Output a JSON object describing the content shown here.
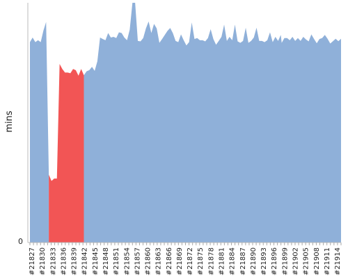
{
  "chart_data": {
    "type": "area",
    "title": "",
    "xlabel": "",
    "ylabel": "mins",
    "y_tick_labels": [
      "0"
    ],
    "ylim": [
      0,
      100
    ],
    "grid": false,
    "legend": "none",
    "categories": [
      "#21827",
      "#21830",
      "#21833",
      "#21836",
      "#21839",
      "#21842",
      "#21845",
      "#21848",
      "#21851",
      "#21854",
      "#21857",
      "#21860",
      "#21863",
      "#21866",
      "#21869",
      "#21872",
      "#21875",
      "#21878",
      "#21881",
      "#21884",
      "#21887",
      "#21890",
      "#21893",
      "#21896",
      "#21899",
      "#21902",
      "#21905",
      "#21908",
      "#21911",
      "#21914"
    ],
    "colors": {
      "normal": "#8fb0d9",
      "highlight": "#f25555"
    },
    "x": [
      0,
      0.75,
      1.5,
      2.25,
      3,
      3.75,
      4.5,
      5.25,
      6,
      6.75,
      7.5,
      8.25,
      9,
      9.75,
      10.5,
      11.25,
      12,
      12.75,
      13.5,
      14.25,
      15,
      15.75,
      16.5,
      17.25,
      18,
      18.75,
      19.5,
      20.25,
      21,
      21.75,
      22.5,
      23.25,
      24,
      24.75,
      25.5,
      26.25,
      27,
      27.75,
      28.5,
      29.25,
      30,
      30.75,
      31.5,
      32.25,
      33,
      33.75,
      34.5,
      35.25,
      36,
      36.75,
      37.5,
      38.25,
      39,
      39.75,
      40.5,
      41.25,
      42,
      42.75,
      43.5,
      44.25,
      45,
      45.75,
      46.5,
      47.25,
      48,
      48.75,
      49.5,
      50.25,
      51,
      51.75,
      52.5,
      53.25,
      54,
      54.75,
      55.5,
      56.25,
      57,
      57.75,
      58.5,
      59.25,
      60,
      60.75,
      61.5,
      62.25,
      63,
      63.75,
      64.5,
      65.25,
      66,
      66.75,
      67.5,
      68.25,
      69,
      69.75,
      70,
      70.75,
      71.5,
      72.25,
      73,
      73.75,
      74.5,
      75.25,
      76,
      76.75,
      77.5,
      78.25,
      79,
      79.75,
      80.5,
      81.25,
      82,
      82.75,
      83.5,
      84.25,
      85,
      85.75,
      86.5
    ],
    "values": [
      83.6,
      85.5,
      83.6,
      84.4,
      83.6,
      88.4,
      92,
      28.3,
      25.7,
      26.7,
      26.7,
      74.5,
      72.4,
      70.9,
      70.9,
      70.6,
      72.4,
      71.9,
      69.6,
      72.4,
      69.8,
      71.4,
      71.9,
      73.3,
      71.6,
      75.6,
      85.5,
      84.9,
      84.4,
      87.4,
      85.5,
      85.8,
      85.3,
      87.7,
      87.4,
      85.5,
      84.4,
      88.8,
      100,
      100,
      84.1,
      83.9,
      85.3,
      89.3,
      92.2,
      87.4,
      91.2,
      89.3,
      83.3,
      84.9,
      86.6,
      88.3,
      89.5,
      87.3,
      84.1,
      83.6,
      86.8,
      84.4,
      82.2,
      83.6,
      91.8,
      84.9,
      85.3,
      84.4,
      84.4,
      83.9,
      85.3,
      89,
      84.9,
      82.5,
      84.1,
      85.8,
      90.9,
      84.1,
      85.8,
      84.4,
      90.9,
      83.9,
      83.3,
      84.1,
      89.6,
      83.3,
      84.1,
      85.5,
      89.6,
      84.1,
      84.1,
      83.6,
      84.4,
      87.7,
      83.6,
      85.8,
      84.1,
      86.6,
      83.3,
      85.3,
      85.3,
      84.4,
      85.8,
      84.1,
      85.3,
      84.1,
      85.8,
      84.7,
      83.9,
      86.8,
      84.9,
      83.1,
      84.9,
      85.3,
      86.6,
      85,
      83,
      84,
      85,
      84,
      85
    ],
    "highlight_range": [
      7,
      20
    ]
  }
}
